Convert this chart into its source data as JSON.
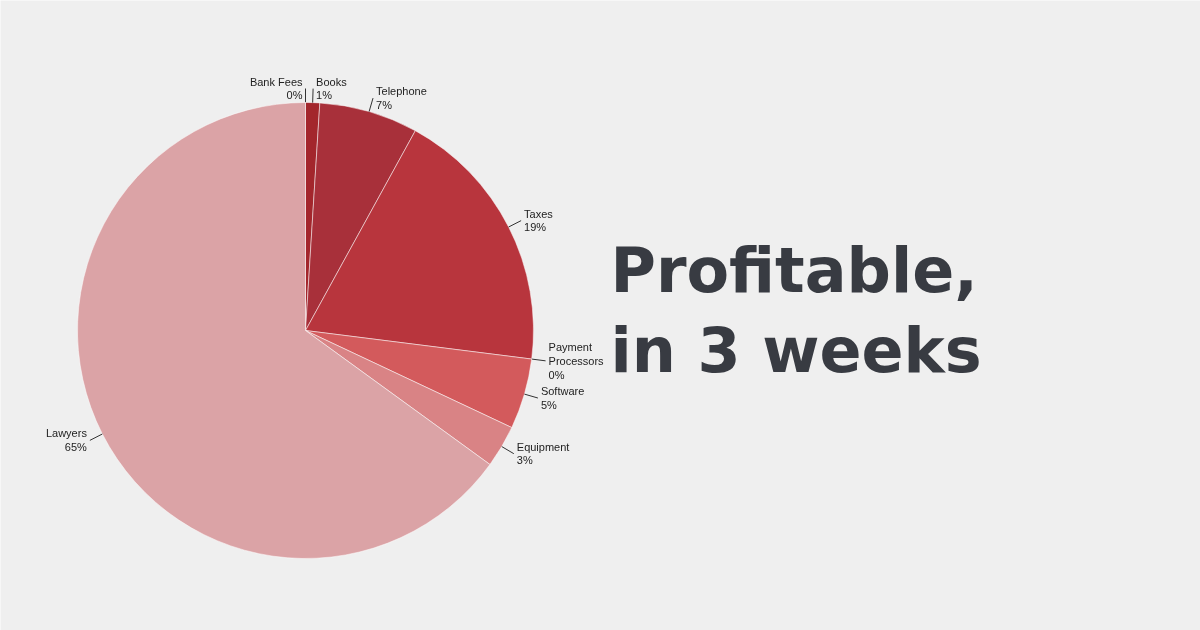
{
  "chart_data": {
    "type": "pie",
    "title": "Profitable,\nin 3 weeks",
    "categories": [
      "Bank Fees",
      "Books",
      "Telephone",
      "Taxes",
      "Payment\nProcessors",
      "Software",
      "Equipment",
      "Lawyers"
    ],
    "values": [
      0,
      1,
      7,
      19,
      0,
      5,
      3,
      65
    ],
    "value_labels": [
      "0%",
      "1%",
      "7%",
      "19%",
      "0%",
      "5%",
      "3%",
      "65%"
    ],
    "colors": [
      "#8e1c22",
      "#a3262c",
      "#a8303a",
      "#b8353d",
      "#c04446",
      "#d35a5c",
      "#d98385",
      "#dba3a6"
    ]
  }
}
